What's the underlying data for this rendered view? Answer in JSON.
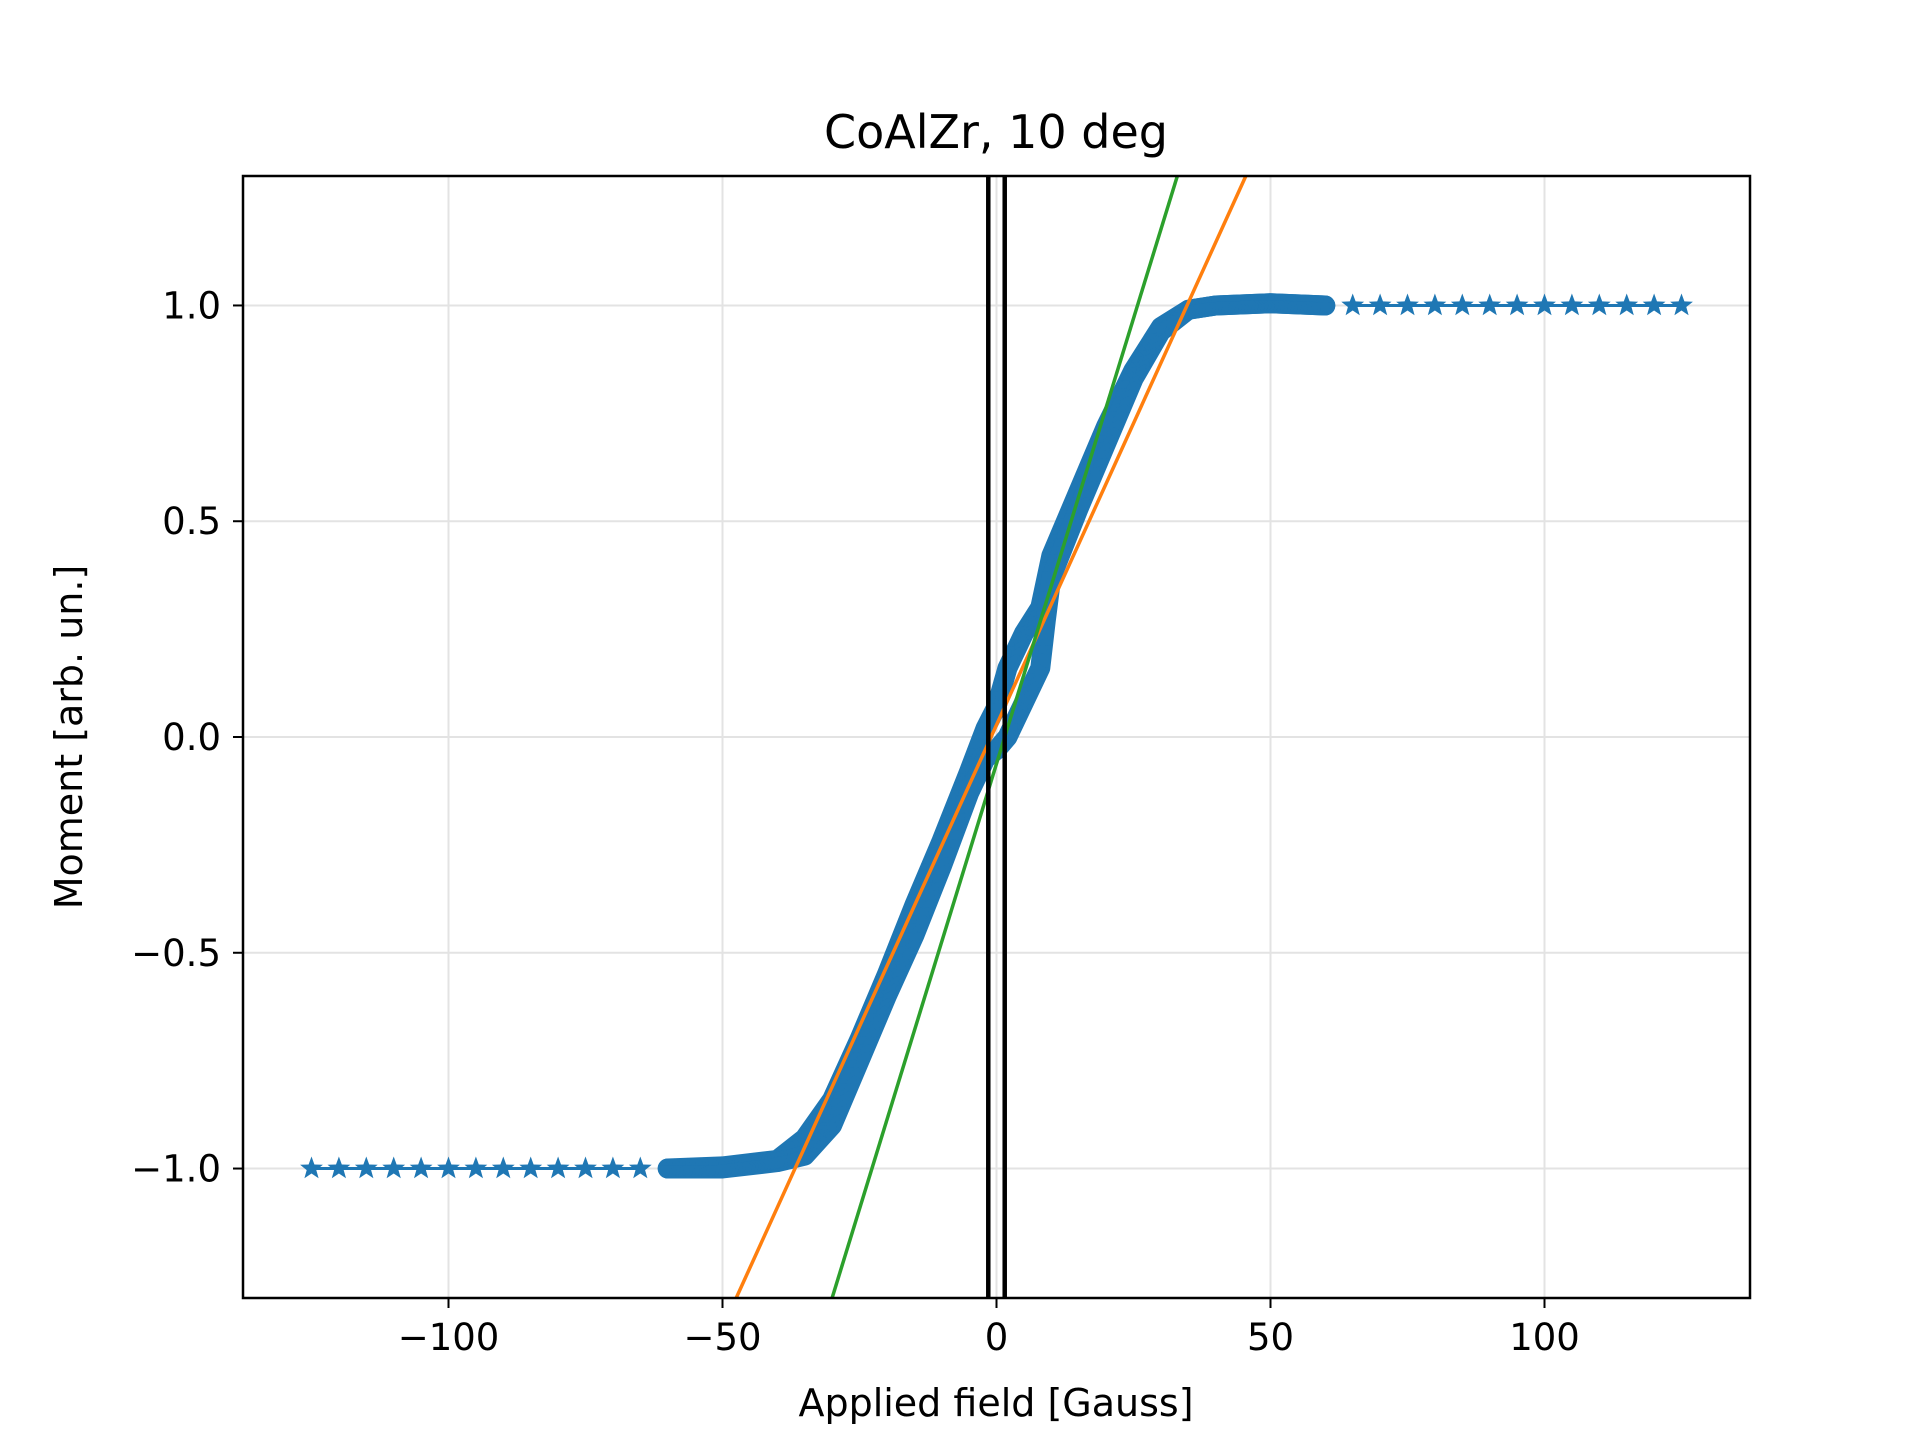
{
  "chart_data": {
    "type": "scatter",
    "title": "CoAlZr, 10 deg",
    "xlabel": "Applied field [Gauss]",
    "ylabel": "Moment [arb. un.]",
    "xlim": [
      -137.5,
      137.5
    ],
    "ylim": [
      -1.3,
      1.3
    ],
    "xticks": [
      -100,
      -50,
      0,
      50,
      100
    ],
    "xtick_labels": [
      "−100",
      "−50",
      "0",
      "50",
      "100"
    ],
    "yticks": [
      -1.0,
      -0.5,
      0.0,
      0.5,
      1.0
    ],
    "ytick_labels": [
      "−1.0",
      "−0.5",
      "0.0",
      "0.5",
      "1.0"
    ],
    "grid": true,
    "series": [
      {
        "name": "measured moment (sparse, |H| > 60)",
        "kind": "star-markers",
        "color": "#1f77b4",
        "x": [
          -125,
          -120,
          -115,
          -110,
          -105,
          -100,
          -95,
          -90,
          -85,
          -80,
          -75,
          -70,
          -65,
          65,
          70,
          75,
          80,
          85,
          90,
          95,
          100,
          105,
          110,
          115,
          120,
          125
        ],
        "y": [
          -1.0,
          -1.0,
          -1.0,
          -1.0,
          -1.0,
          -1.0,
          -1.0,
          -1.0,
          -1.0,
          -1.0,
          -1.0,
          -1.0,
          -1.0,
          1.0,
          1.0,
          1.0,
          1.0,
          1.0,
          1.0,
          1.0,
          1.0,
          1.0,
          1.0,
          1.0,
          1.0,
          1.0
        ]
      },
      {
        "name": "measured moment (dense loop, upper branch)",
        "kind": "dense-markers",
        "color": "#1f77b4",
        "x": [
          -60,
          -50,
          -40,
          -37,
          -35,
          -30,
          -25,
          -20,
          -15,
          -10,
          -5,
          -2,
          0,
          2,
          5,
          8,
          10,
          15,
          20,
          25,
          30,
          35,
          40,
          50,
          60
        ],
        "y": [
          -1.0,
          -0.995,
          -0.98,
          -0.95,
          -0.93,
          -0.84,
          -0.7,
          -0.55,
          -0.39,
          -0.24,
          -0.08,
          0.02,
          0.07,
          0.16,
          0.24,
          0.3,
          0.42,
          0.57,
          0.72,
          0.85,
          0.95,
          0.99,
          1.0,
          1.005,
          1.0
        ]
      },
      {
        "name": "measured moment (dense loop, lower branch)",
        "kind": "dense-markers",
        "color": "#1f77b4",
        "x": [
          -60,
          -50,
          -40,
          -35,
          -30,
          -25,
          -20,
          -15,
          -10,
          -5,
          -2,
          0,
          2,
          5,
          8,
          9,
          10,
          15,
          20,
          25,
          30,
          35,
          40,
          50,
          60
        ],
        "y": [
          -1.0,
          -1.0,
          -0.985,
          -0.97,
          -0.9,
          -0.75,
          -0.6,
          -0.46,
          -0.3,
          -0.13,
          -0.05,
          -0.03,
          0.0,
          0.08,
          0.16,
          0.27,
          0.37,
          0.53,
          0.68,
          0.83,
          0.94,
          0.99,
          1.0,
          1.005,
          1.0
        ]
      },
      {
        "name": "linear fit (orange)",
        "kind": "line",
        "color": "#ff7f0e",
        "x": [
          -47.5,
          45.5
        ],
        "y": [
          -1.3,
          1.3
        ]
      },
      {
        "name": "linear fit (green)",
        "kind": "line",
        "color": "#2ca02c",
        "x": [
          -30.0,
          33.0
        ],
        "y": [
          -1.3,
          1.3
        ]
      },
      {
        "name": "vertical marker 1",
        "kind": "vline",
        "color": "#000000",
        "x": [
          -1.5,
          -1.5
        ],
        "y": [
          -1.3,
          1.3
        ]
      },
      {
        "name": "vertical marker 2",
        "kind": "vline",
        "color": "#000000",
        "x": [
          1.5,
          1.5
        ],
        "y": [
          -1.3,
          1.3
        ]
      }
    ]
  }
}
